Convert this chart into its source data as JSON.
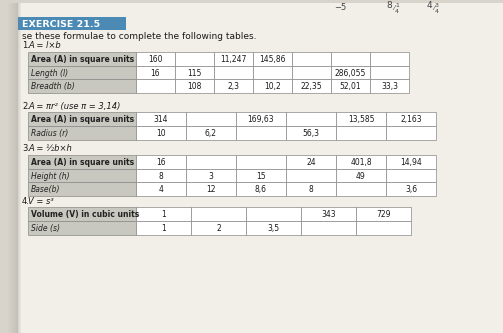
{
  "page_bg": "#d8d4cc",
  "page_content_bg": "#f2efe8",
  "left_margin_bg": "#c8c4bc",
  "header_bg": "#4a8ab5",
  "header_text": "EXERCISE 21.5",
  "intro_text": "se these formulae to complete the following tables.",
  "cell_bg": "#ffffff",
  "row_header_bg": "#c8c8c0",
  "grid_color": "#888888",
  "text_color": "#1a1a1a",
  "label_color": "#222222",
  "table1_headers": [
    "Area (A) in square units",
    "Length (l)",
    "Breadth (b)"
  ],
  "table1_cols": [
    [
      "160",
      "16",
      ""
    ],
    [
      "",
      "115",
      "108"
    ],
    [
      "11,247",
      "",
      "2,3"
    ],
    [
      "145,86",
      "",
      "10,2"
    ],
    [
      "",
      "",
      "22,35"
    ],
    [
      "",
      "286,055",
      "52,01"
    ],
    [
      "",
      "",
      "33,3"
    ]
  ],
  "table2_headers": [
    "Area (A) in square units",
    "Radius (r)"
  ],
  "table2_cols": [
    [
      "314",
      "10"
    ],
    [
      "",
      "6,2"
    ],
    [
      "169,63",
      ""
    ],
    [
      "",
      "56,3"
    ],
    [
      "13,585",
      ""
    ],
    [
      "2,163",
      ""
    ]
  ],
  "table3_headers": [
    "Area (A) in square units",
    "Height (h)",
    "Base(b)"
  ],
  "table3_cols": [
    [
      "16",
      "8",
      "4"
    ],
    [
      "",
      "3",
      "12"
    ],
    [
      "",
      "15",
      "8,6"
    ],
    [
      "24",
      "",
      "8"
    ],
    [
      "401,8",
      "49",
      ""
    ],
    [
      "14,94",
      "",
      "3,6"
    ]
  ],
  "table4_headers": [
    "Volume (V) in cubic units",
    "Side (s)"
  ],
  "table4_cols": [
    [
      "1",
      "1"
    ],
    [
      "",
      "2"
    ],
    [
      "",
      "3,5"
    ],
    [
      "343",
      ""
    ],
    [
      "729",
      ""
    ]
  ]
}
